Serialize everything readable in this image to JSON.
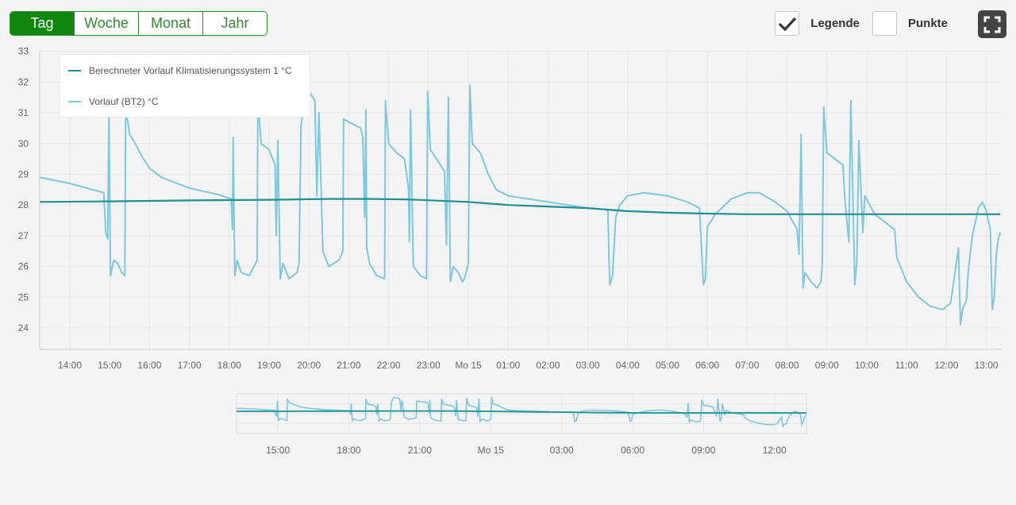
{
  "toolbar": {
    "ranges": [
      "Tag",
      "Woche",
      "Monat",
      "Jahr"
    ],
    "active_range": "Tag",
    "legend_label": "Legende",
    "legend_checked": true,
    "points_label": "Punkte",
    "points_checked": false
  },
  "colors": {
    "active_green": "#0f870f",
    "series1": "#1e9090",
    "series2": "#7ec8e0"
  },
  "icons": {
    "checkmark": "check-icon",
    "fullscreen": "fullscreen-icon"
  },
  "chart_data": {
    "type": "line",
    "title": "",
    "xlabel": "",
    "ylabel": "",
    "ylim": [
      23.3,
      33
    ],
    "yticks": [
      24,
      25,
      26,
      27,
      28,
      29,
      30,
      31,
      32,
      33
    ],
    "xlim": [
      13.25,
      37.35
    ],
    "xticks": [
      {
        "x": 14,
        "label": "14:00"
      },
      {
        "x": 15,
        "label": "15:00"
      },
      {
        "x": 16,
        "label": "16:00"
      },
      {
        "x": 17,
        "label": "17:00"
      },
      {
        "x": 18,
        "label": "18:00"
      },
      {
        "x": 19,
        "label": "19:00"
      },
      {
        "x": 20,
        "label": "20:00"
      },
      {
        "x": 21,
        "label": "21:00"
      },
      {
        "x": 22,
        "label": "22:00"
      },
      {
        "x": 23,
        "label": "23:00"
      },
      {
        "x": 24,
        "label": "Mo 15"
      },
      {
        "x": 25,
        "label": "01:00"
      },
      {
        "x": 26,
        "label": "02:00"
      },
      {
        "x": 27,
        "label": "03:00"
      },
      {
        "x": 28,
        "label": "04:00"
      },
      {
        "x": 29,
        "label": "05:00"
      },
      {
        "x": 30,
        "label": "06:00"
      },
      {
        "x": 31,
        "label": "07:00"
      },
      {
        "x": 32,
        "label": "08:00"
      },
      {
        "x": 33,
        "label": "09:00"
      },
      {
        "x": 34,
        "label": "10:00"
      },
      {
        "x": 35,
        "label": "11:00"
      },
      {
        "x": 36,
        "label": "12:00"
      },
      {
        "x": 37,
        "label": "13:00"
      }
    ],
    "navigator_xticks": [
      {
        "x": 15,
        "label": "15:00"
      },
      {
        "x": 18,
        "label": "18:00"
      },
      {
        "x": 21,
        "label": "21:00"
      },
      {
        "x": 24,
        "label": "Mo 15"
      },
      {
        "x": 27,
        "label": "03:00"
      },
      {
        "x": 30,
        "label": "06:00"
      },
      {
        "x": 33,
        "label": "09:00"
      },
      {
        "x": 36,
        "label": "12:00"
      }
    ],
    "grid": true,
    "legend_position": "top-left",
    "series": [
      {
        "name": "Berechneter Vorlauf Klimatisierungssystem 1 °C",
        "color": "#1e9090",
        "points": [
          [
            13.25,
            28.1
          ],
          [
            15,
            28.12
          ],
          [
            17,
            28.15
          ],
          [
            19,
            28.17
          ],
          [
            20.5,
            28.2
          ],
          [
            21.5,
            28.2
          ],
          [
            22.5,
            28.18
          ],
          [
            24,
            28.1
          ],
          [
            25,
            28.0
          ],
          [
            26,
            27.95
          ],
          [
            27,
            27.9
          ],
          [
            28,
            27.8
          ],
          [
            29,
            27.75
          ],
          [
            30,
            27.72
          ],
          [
            31,
            27.7
          ],
          [
            37.35,
            27.7
          ]
        ]
      },
      {
        "name": "Vorlauf (BT2) °C",
        "color": "#7ec8e0",
        "points": [
          [
            13.25,
            28.9
          ],
          [
            14,
            28.7
          ],
          [
            14.85,
            28.4
          ],
          [
            14.9,
            27.1
          ],
          [
            14.95,
            26.9
          ],
          [
            14.98,
            30.9
          ],
          [
            15.02,
            25.7
          ],
          [
            15.1,
            26.2
          ],
          [
            15.2,
            26.1
          ],
          [
            15.3,
            25.8
          ],
          [
            15.38,
            25.7
          ],
          [
            15.4,
            31.2
          ],
          [
            15.5,
            30.3
          ],
          [
            15.6,
            30.1
          ],
          [
            15.8,
            29.6
          ],
          [
            16,
            29.2
          ],
          [
            16.3,
            28.9
          ],
          [
            17,
            28.55
          ],
          [
            17.7,
            28.35
          ],
          [
            18.05,
            28.2
          ],
          [
            18.08,
            27.2
          ],
          [
            18.1,
            30.2
          ],
          [
            18.14,
            25.7
          ],
          [
            18.2,
            26.2
          ],
          [
            18.3,
            25.8
          ],
          [
            18.5,
            25.7
          ],
          [
            18.7,
            26.2
          ],
          [
            18.72,
            31.4
          ],
          [
            18.8,
            30.0
          ],
          [
            19,
            29.8
          ],
          [
            19.15,
            29.3
          ],
          [
            19.18,
            27.0
          ],
          [
            19.22,
            30.1
          ],
          [
            19.28,
            25.6
          ],
          [
            19.35,
            26.1
          ],
          [
            19.5,
            25.6
          ],
          [
            19.7,
            25.8
          ],
          [
            19.75,
            26.1
          ],
          [
            19.8,
            30.5
          ],
          [
            19.9,
            31.8
          ],
          [
            20,
            31.7
          ],
          [
            20.15,
            31.4
          ],
          [
            20.2,
            28.3
          ],
          [
            20.25,
            31.0
          ],
          [
            20.35,
            26.5
          ],
          [
            20.5,
            26.0
          ],
          [
            20.75,
            26.2
          ],
          [
            20.85,
            26.5
          ],
          [
            20.87,
            30.8
          ],
          [
            21,
            30.7
          ],
          [
            21.3,
            30.5
          ],
          [
            21.35,
            30.2
          ],
          [
            21.4,
            27.6
          ],
          [
            21.43,
            31.1
          ],
          [
            21.45,
            26.6
          ],
          [
            21.52,
            26.1
          ],
          [
            21.7,
            25.7
          ],
          [
            21.9,
            25.6
          ],
          [
            21.92,
            31.4
          ],
          [
            22,
            30.0
          ],
          [
            22.2,
            29.7
          ],
          [
            22.4,
            29.5
          ],
          [
            22.5,
            28.5
          ],
          [
            22.52,
            26.8
          ],
          [
            22.55,
            31.1
          ],
          [
            22.62,
            26.0
          ],
          [
            22.8,
            25.7
          ],
          [
            22.95,
            25.6
          ],
          [
            22.98,
            31.7
          ],
          [
            23.05,
            29.8
          ],
          [
            23.2,
            29.5
          ],
          [
            23.4,
            29.1
          ],
          [
            23.45,
            26.7
          ],
          [
            23.5,
            31.5
          ],
          [
            23.55,
            25.5
          ],
          [
            23.62,
            26.0
          ],
          [
            23.75,
            25.8
          ],
          [
            23.85,
            25.5
          ],
          [
            23.9,
            25.6
          ],
          [
            24,
            26.1
          ],
          [
            24.04,
            31.9
          ],
          [
            24.1,
            30.0
          ],
          [
            24.3,
            29.7
          ],
          [
            24.5,
            29.0
          ],
          [
            24.7,
            28.5
          ],
          [
            25,
            28.3
          ],
          [
            26,
            28.1
          ],
          [
            27,
            27.9
          ],
          [
            27.5,
            27.85
          ],
          [
            27.55,
            25.4
          ],
          [
            27.62,
            25.7
          ],
          [
            27.7,
            27.6
          ],
          [
            27.8,
            28.0
          ],
          [
            28,
            28.3
          ],
          [
            28.4,
            28.4
          ],
          [
            29,
            28.3
          ],
          [
            29.5,
            28.1
          ],
          [
            29.8,
            27.9
          ],
          [
            29.9,
            25.4
          ],
          [
            29.95,
            25.6
          ],
          [
            30,
            27.3
          ],
          [
            30.2,
            27.7
          ],
          [
            30.6,
            28.2
          ],
          [
            31,
            28.4
          ],
          [
            31.3,
            28.4
          ],
          [
            31.7,
            28.1
          ],
          [
            32,
            27.8
          ],
          [
            32.25,
            27.2
          ],
          [
            32.3,
            26.4
          ],
          [
            32.35,
            30.3
          ],
          [
            32.4,
            25.3
          ],
          [
            32.45,
            25.8
          ],
          [
            32.6,
            25.5
          ],
          [
            32.75,
            25.3
          ],
          [
            32.85,
            25.5
          ],
          [
            32.88,
            26.0
          ],
          [
            32.92,
            31.2
          ],
          [
            33,
            29.7
          ],
          [
            33.2,
            29.5
          ],
          [
            33.4,
            29.3
          ],
          [
            33.45,
            28.2
          ],
          [
            33.55,
            26.8
          ],
          [
            33.6,
            31.4
          ],
          [
            33.7,
            25.4
          ],
          [
            33.75,
            26.2
          ],
          [
            33.8,
            30.1
          ],
          [
            33.9,
            27.1
          ],
          [
            33.95,
            28.3
          ],
          [
            34.2,
            27.7
          ],
          [
            34.5,
            27.4
          ],
          [
            34.7,
            27.2
          ],
          [
            34.75,
            26.3
          ],
          [
            35,
            25.5
          ],
          [
            35.3,
            25.0
          ],
          [
            35.6,
            24.7
          ],
          [
            35.9,
            24.6
          ],
          [
            36.1,
            24.8
          ],
          [
            36.15,
            25.2
          ],
          [
            36.3,
            26.6
          ],
          [
            36.35,
            24.1
          ],
          [
            36.4,
            24.6
          ],
          [
            36.5,
            24.9
          ],
          [
            36.55,
            25.9
          ],
          [
            36.65,
            27.0
          ],
          [
            36.8,
            27.9
          ],
          [
            36.9,
            28.1
          ],
          [
            37,
            27.8
          ],
          [
            37.1,
            27.2
          ],
          [
            37.15,
            24.6
          ],
          [
            37.2,
            25.0
          ],
          [
            37.25,
            26.4
          ],
          [
            37.3,
            26.9
          ],
          [
            37.35,
            27.1
          ]
        ]
      }
    ]
  }
}
